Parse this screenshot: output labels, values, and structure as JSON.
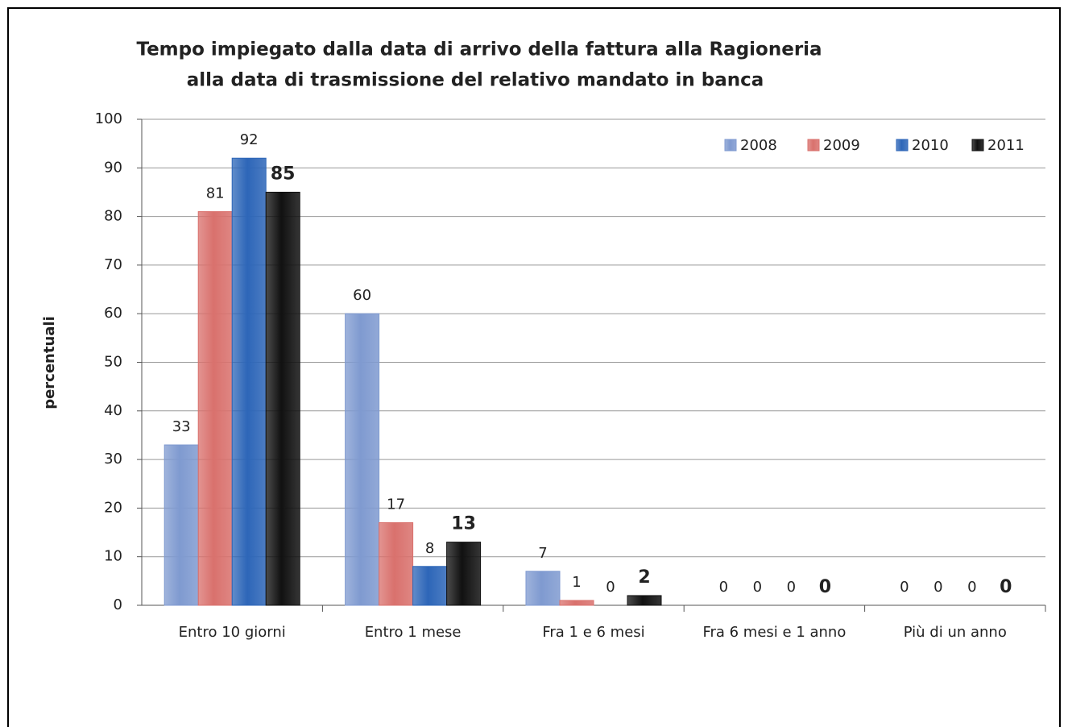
{
  "chart_data": {
    "type": "bar",
    "title": [
      "Tempo impiegato dalla data di arrivo della fattura alla Ragioneria",
      "alla data di trasmissione del relativo mandato in banca"
    ],
    "y_label": "percentuali",
    "categories": [
      "Entro 10 giorni",
      "Entro 1 mese",
      "Fra 1 e 6 mesi",
      "Fra 6 mesi e 1 anno",
      "Più di un anno"
    ],
    "series": [
      {
        "name": "2008",
        "color": "#7f9ad0",
        "values": [
          33,
          60,
          7,
          0,
          0
        ]
      },
      {
        "name": "2009",
        "color": "#d9716d",
        "values": [
          81,
          17,
          1,
          0,
          0
        ]
      },
      {
        "name": "2010",
        "color": "#2d66b8",
        "values": [
          92,
          8,
          0,
          0,
          0
        ]
      },
      {
        "name": "2011",
        "color": "#111111",
        "values": [
          85,
          13,
          2,
          0,
          0
        ]
      }
    ],
    "ylim": [
      0,
      100
    ],
    "yticks": [
      0,
      10,
      20,
      30,
      40,
      50,
      60,
      70,
      80,
      90,
      100
    ],
    "grid": true,
    "legend": "top-right"
  }
}
